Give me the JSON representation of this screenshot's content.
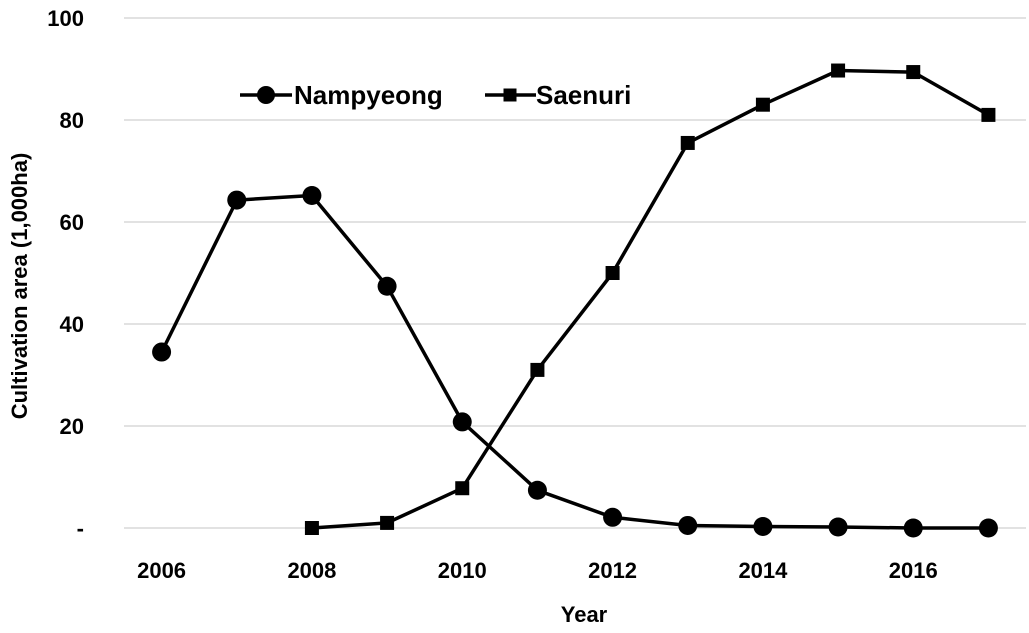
{
  "chart_data": {
    "type": "line",
    "xlabel": "Year",
    "ylabel": "Cultivation area (1,000ha)",
    "xlim": [
      2005.5,
      2017.5
    ],
    "ylim": [
      0,
      100
    ],
    "x_ticks": [
      2006,
      2008,
      2010,
      2012,
      2014,
      2016
    ],
    "y_ticks": [
      {
        "value": 0,
        "label": "-"
      },
      {
        "value": 20,
        "label": "20"
      },
      {
        "value": 40,
        "label": "40"
      },
      {
        "value": 60,
        "label": "60"
      },
      {
        "value": 80,
        "label": "80"
      },
      {
        "value": 100,
        "label": "100"
      }
    ],
    "grid": "horizontal",
    "legend_position": "top-left",
    "colors": {
      "line": "#000000",
      "grid": "#d9d9d9"
    },
    "series": [
      {
        "name": "Nampyeong",
        "marker": "circle",
        "points": [
          {
            "x": 2006,
            "y": 34.5
          },
          {
            "x": 2007,
            "y": 64.3
          },
          {
            "x": 2008,
            "y": 65.2
          },
          {
            "x": 2009,
            "y": 47.4
          },
          {
            "x": 2010,
            "y": 20.8
          },
          {
            "x": 2011,
            "y": 7.4
          },
          {
            "x": 2012,
            "y": 2.1
          },
          {
            "x": 2013,
            "y": 0.5
          },
          {
            "x": 2014,
            "y": 0.3
          },
          {
            "x": 2015,
            "y": 0.2
          },
          {
            "x": 2016,
            "y": 0.0
          },
          {
            "x": 2017,
            "y": 0.0
          }
        ]
      },
      {
        "name": "Saenuri",
        "marker": "square",
        "points": [
          {
            "x": 2008,
            "y": 0.0
          },
          {
            "x": 2009,
            "y": 1.0
          },
          {
            "x": 2010,
            "y": 7.8
          },
          {
            "x": 2011,
            "y": 31.0
          },
          {
            "x": 2012,
            "y": 50.0
          },
          {
            "x": 2013,
            "y": 75.5
          },
          {
            "x": 2014,
            "y": 83.0
          },
          {
            "x": 2015,
            "y": 89.7
          },
          {
            "x": 2016,
            "y": 89.4
          },
          {
            "x": 2017,
            "y": 81.0
          }
        ]
      }
    ]
  }
}
